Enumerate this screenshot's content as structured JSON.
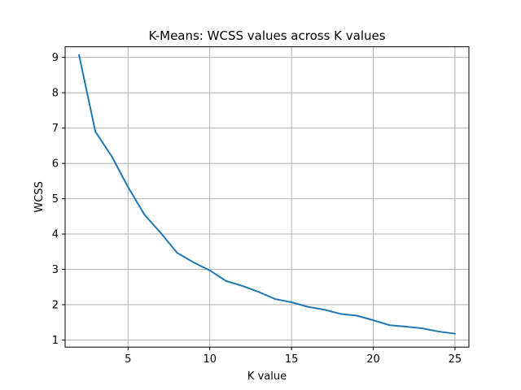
{
  "chart_data": {
    "type": "line",
    "title": "K-Means: WCSS values across K values",
    "xlabel": "K value",
    "ylabel": "WCSS",
    "xlim": [
      1.15,
      25.85
    ],
    "ylim": [
      0.8,
      9.3
    ],
    "xticks": [
      5,
      10,
      15,
      20,
      25
    ],
    "yticks": [
      1,
      2,
      3,
      4,
      5,
      6,
      7,
      8,
      9
    ],
    "grid": true,
    "series": [
      {
        "color": "#1f77b4",
        "x": [
          2,
          3,
          4,
          5,
          6,
          7,
          8,
          9,
          10,
          11,
          12,
          13,
          14,
          15,
          16,
          17,
          18,
          19,
          20,
          21,
          22,
          23,
          24,
          25
        ],
        "y": [
          9.07,
          6.9,
          6.2,
          5.33,
          4.55,
          4.03,
          3.47,
          3.2,
          2.97,
          2.67,
          2.53,
          2.36,
          2.16,
          2.07,
          1.94,
          1.86,
          1.74,
          1.69,
          1.56,
          1.42,
          1.38,
          1.33,
          1.24,
          1.18
        ]
      }
    ]
  }
}
